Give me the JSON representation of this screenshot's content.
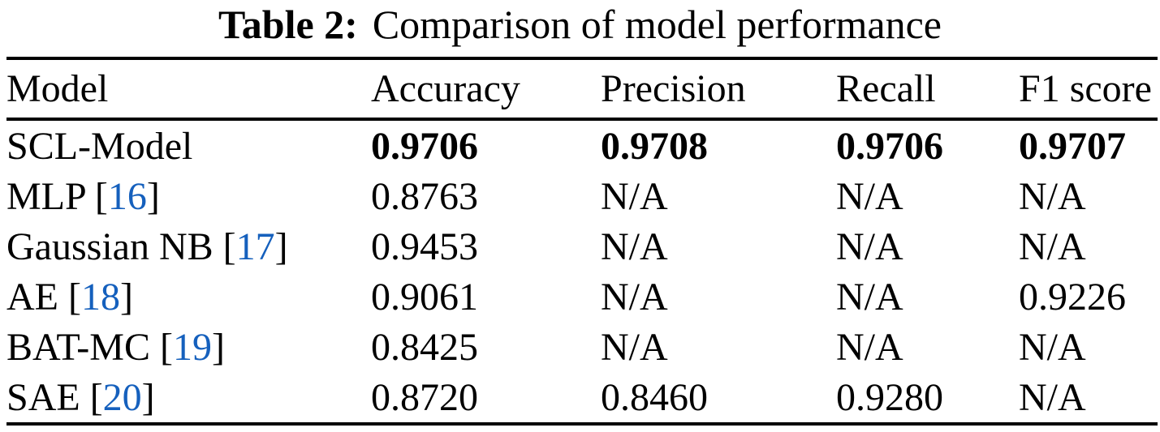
{
  "caption": {
    "label": "Table 2:",
    "text": "Comparison of model performance"
  },
  "colors": {
    "background": "#ffffff",
    "text": "#000000",
    "citation_link": "#1560bd",
    "rule": "#000000"
  },
  "table": {
    "columns": [
      "Model",
      "Accuracy",
      "Precision",
      "Recall",
      "F1 score"
    ],
    "rows": [
      {
        "model": "SCL-Model",
        "best": true,
        "accuracy": "0.9706",
        "precision": "0.9708",
        "recall": "0.9706",
        "f1": "0.9707"
      },
      {
        "model": "MLP",
        "cite_pre": " [",
        "citation": "16",
        "cite_post": "]",
        "accuracy": "0.8763",
        "precision": "N/A",
        "recall": "N/A",
        "f1": "N/A"
      },
      {
        "model": "Gaussian NB",
        "cite_pre": " [",
        "citation": "17",
        "cite_post": "]",
        "accuracy": "0.9453",
        "precision": "N/A",
        "recall": "N/A",
        "f1": "N/A"
      },
      {
        "model": "AE",
        "cite_pre": " [",
        "citation": "18",
        "cite_post": "]",
        "accuracy": "0.9061",
        "precision": "N/A",
        "recall": "N/A",
        "f1": "0.9226"
      },
      {
        "model": "BAT-MC",
        "cite_pre": " [",
        "citation": "19",
        "cite_post": "]",
        "accuracy": "0.8425",
        "precision": "N/A",
        "recall": "N/A",
        "f1": "N/A"
      },
      {
        "model": "SAE",
        "cite_pre": " [",
        "citation": "20",
        "cite_post": "]",
        "accuracy": "0.8720",
        "precision": "0.8460",
        "recall": "0.9280",
        "f1": "N/A"
      }
    ]
  }
}
